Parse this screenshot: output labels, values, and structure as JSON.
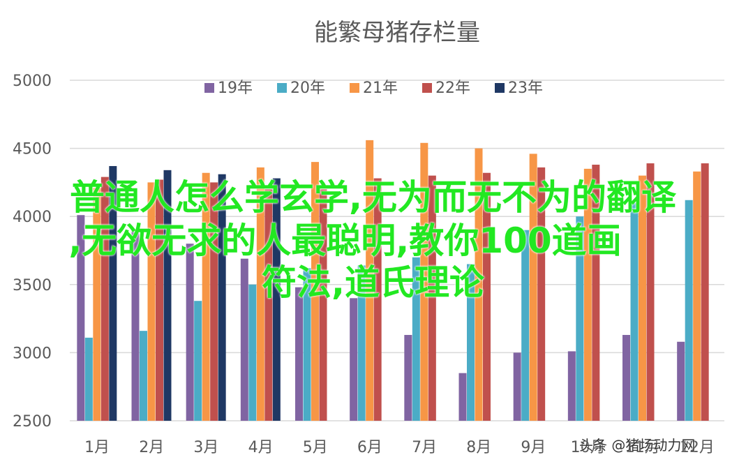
{
  "chart_data": {
    "type": "bar",
    "title": "能繁母猪存栏量",
    "categories": [
      "1月",
      "2月",
      "3月",
      "4月",
      "5月",
      "6月",
      "7月",
      "8月",
      "9月",
      "10月",
      "11月",
      "12月"
    ],
    "series": [
      {
        "name": "19年",
        "color": "#8064a2",
        "values": [
          4010,
          3890,
          3800,
          3690,
          3480,
          3400,
          3130,
          2850,
          3000,
          3010,
          3130,
          3080
        ]
      },
      {
        "name": "20年",
        "color": "#4bacc6",
        "values": [
          3110,
          3160,
          3380,
          3500,
          3620,
          3640,
          3700,
          3650,
          3900,
          4000,
          4100,
          4120
        ]
      },
      {
        "name": "21年",
        "color": "#f79646",
        "values": [
          4210,
          4250,
          4320,
          4360,
          4400,
          4560,
          4540,
          4500,
          4460,
          4350,
          4300,
          4330
        ]
      },
      {
        "name": "22年",
        "color": "#c0504d",
        "values": [
          4290,
          4270,
          4250,
          4200,
          4200,
          4280,
          4300,
          4320,
          4360,
          4380,
          4390,
          4390
        ]
      },
      {
        "name": "23年",
        "color": "#1f3864",
        "values": [
          4370,
          4340,
          4310,
          4280,
          null,
          null,
          null,
          null,
          null,
          null,
          null,
          null
        ]
      }
    ],
    "y_ticks": [
      "2500",
      "3000",
      "3500",
      "4000",
      "4500",
      "5000"
    ],
    "ylim": [
      2500,
      5000
    ],
    "grid": true,
    "legend_position": "top"
  },
  "overlay": {
    "line1": "普通人怎么学玄学,无为而无不为的翻译",
    "line2": ",无欲无求的人最聪明,教你100道画",
    "line3": "符法,道氏理论"
  },
  "watermark": "头条 @猪场动力网"
}
